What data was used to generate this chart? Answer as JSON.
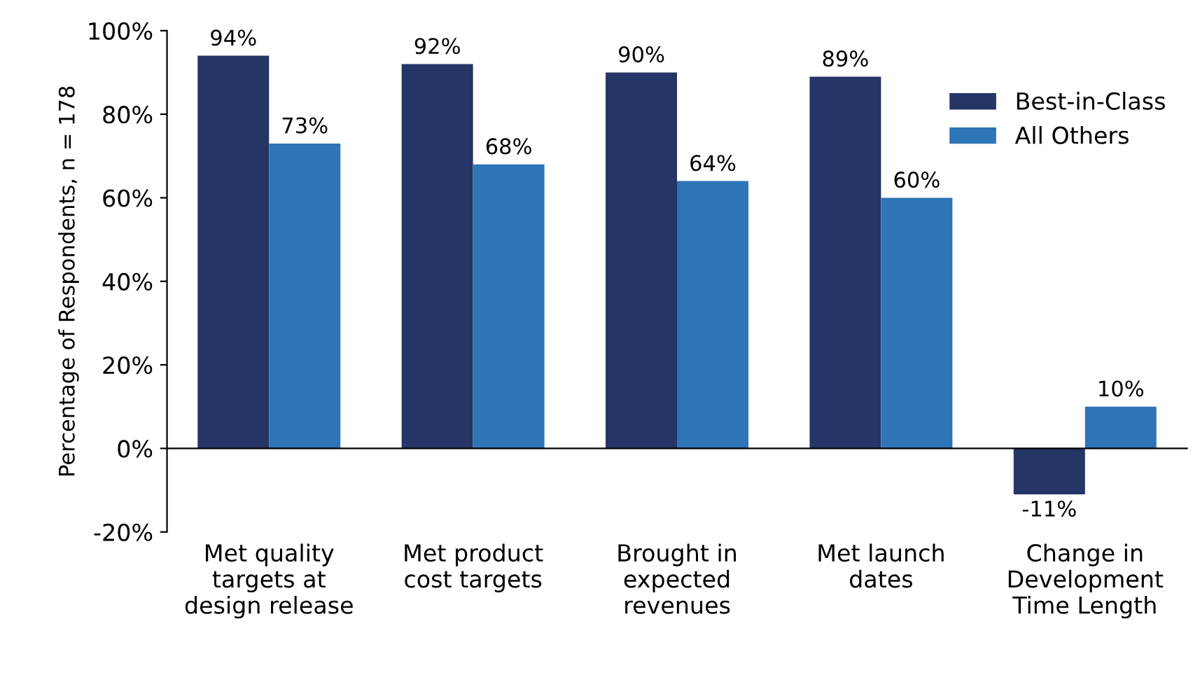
{
  "chart_data": {
    "type": "bar",
    "ylabel": "Percentage of Respondents, n = 178",
    "categories": [
      "Met quality\ntargets at\ndesign release",
      "Met product\ncost targets",
      "Brought in\nexpected\nrevenues",
      "Met launch\ndates",
      "Change in\nDevelopment\nTime Length"
    ],
    "series": [
      {
        "name": "Best-in-Class",
        "color": "#243566",
        "values": [
          94,
          92,
          90,
          89,
          -11
        ],
        "value_labels": [
          "94%",
          "92%",
          "90%",
          "89%",
          "-11%"
        ]
      },
      {
        "name": "All Others",
        "color": "#2e75b6",
        "values": [
          73,
          68,
          64,
          60,
          10
        ],
        "value_labels": [
          "73%",
          "68%",
          "64%",
          "60%",
          "10%"
        ]
      }
    ],
    "ylim": [
      -20,
      100
    ],
    "yticks": [
      {
        "value": -20,
        "label": "-20%"
      },
      {
        "value": 0,
        "label": "0%"
      },
      {
        "value": 20,
        "label": "20%"
      },
      {
        "value": 40,
        "label": "40%"
      },
      {
        "value": 60,
        "label": "60%"
      },
      {
        "value": 80,
        "label": "80%"
      },
      {
        "value": 100,
        "label": "100%"
      }
    ],
    "legend": "upper right"
  }
}
